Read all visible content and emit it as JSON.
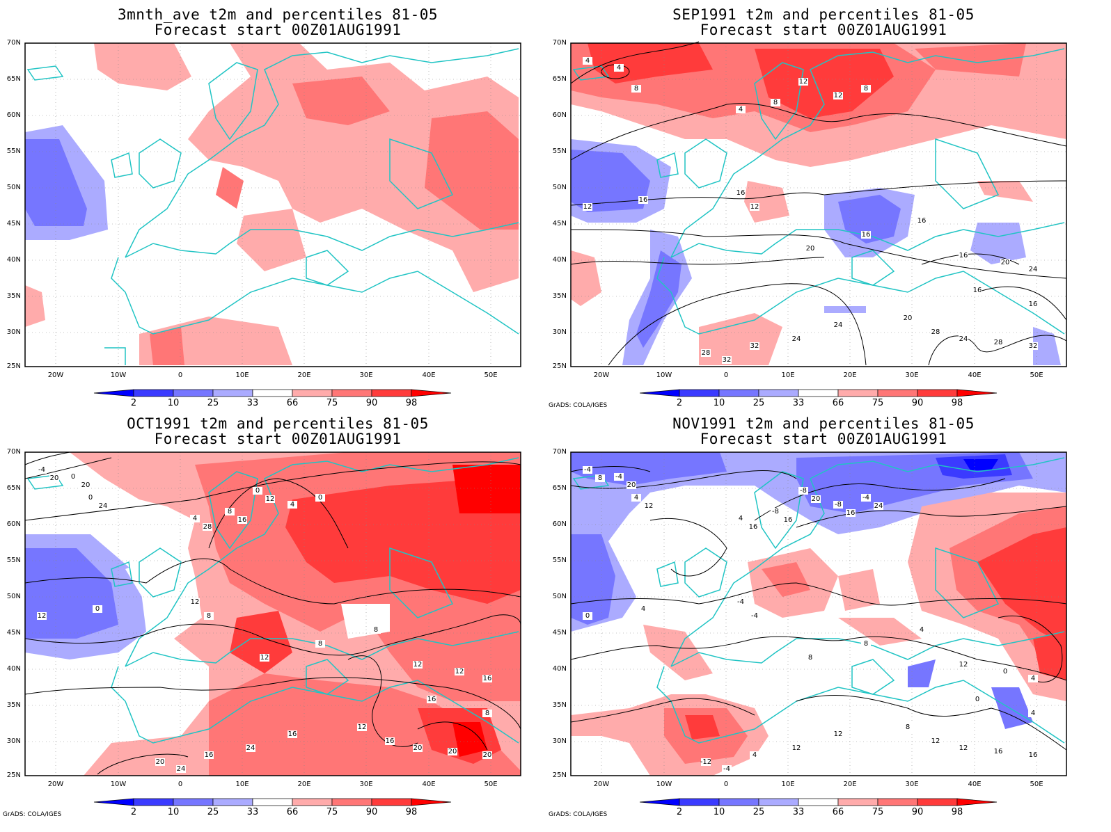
{
  "panels": [
    {
      "id": "p1",
      "title1": "3mnth_ave t2m and percentiles 81-05",
      "title2": "Forecast start 00Z01AUG1991",
      "credit": "",
      "contours": []
    },
    {
      "id": "p2",
      "title1": "SEP1991 t2m and percentiles 81-05",
      "title2": "Forecast start 00Z01AUG1991",
      "credit": "GrADS: COLA/IGES",
      "contours": [
        "4",
        "4",
        "8",
        "4",
        "8",
        "12",
        "12",
        "8",
        "12",
        "16",
        "12",
        "16",
        "16",
        "16",
        "20",
        "16",
        "20",
        "24",
        "16",
        "16",
        "20",
        "24",
        "28",
        "24",
        "28",
        "32",
        "28",
        "32",
        "32",
        "24"
      ]
    },
    {
      "id": "p3",
      "title1": "OCT1991 t2m and percentiles 81-05",
      "title2": "Forecast start 00Z01AUG1991",
      "credit": "GrADS: COLA/IGES",
      "contours": [
        "-4",
        "0",
        "0",
        "4",
        "8",
        "0",
        "4",
        "0",
        "8",
        "0",
        "12",
        "12",
        "8",
        "8",
        "12",
        "12",
        "12",
        "16",
        "16",
        "8",
        "12",
        "16",
        "16",
        "20",
        "20",
        "20",
        "20",
        "24",
        "16",
        "24",
        "20",
        "20",
        "24",
        "28",
        "16",
        "12"
      ]
    },
    {
      "id": "p4",
      "title1": "NOV1991 t2m and percentiles 81-05",
      "title2": "Forecast start 00Z01AUG1991",
      "credit": "GrADS: COLA/IGES",
      "contours": [
        "-4",
        "-4",
        "4",
        "4",
        "-8",
        "-8",
        "-8",
        "-4",
        "-4",
        "4",
        "0",
        "-4",
        "4",
        "8",
        "8",
        "12",
        "0",
        "4",
        "0",
        "4",
        "8",
        "12",
        "12",
        "12",
        "16",
        "16",
        "-12",
        "-4",
        "4",
        "12",
        "8",
        "20",
        "12",
        "16",
        "16",
        "20",
        "16",
        "24"
      ]
    }
  ],
  "axes": {
    "lat_labels": [
      "70N",
      "65N",
      "60N",
      "55N",
      "50N",
      "45N",
      "40N",
      "35N",
      "30N",
      "25N"
    ],
    "lon_labels": [
      "20W",
      "10W",
      "0",
      "10E",
      "20E",
      "30E",
      "40E",
      "50E"
    ]
  },
  "colorbar": {
    "labels": [
      "2",
      "10",
      "25",
      "33",
      "66",
      "75",
      "90",
      "98"
    ],
    "colors": [
      "#0000ff",
      "#3b3bff",
      "#7676ff",
      "#ababff",
      "#ffffff",
      "#ffabab",
      "#ff7676",
      "#ff3b3b",
      "#ff0000"
    ]
  },
  "colors": {
    "coast": "#20c4c4",
    "contour": "#000000",
    "frame": "#000000"
  }
}
